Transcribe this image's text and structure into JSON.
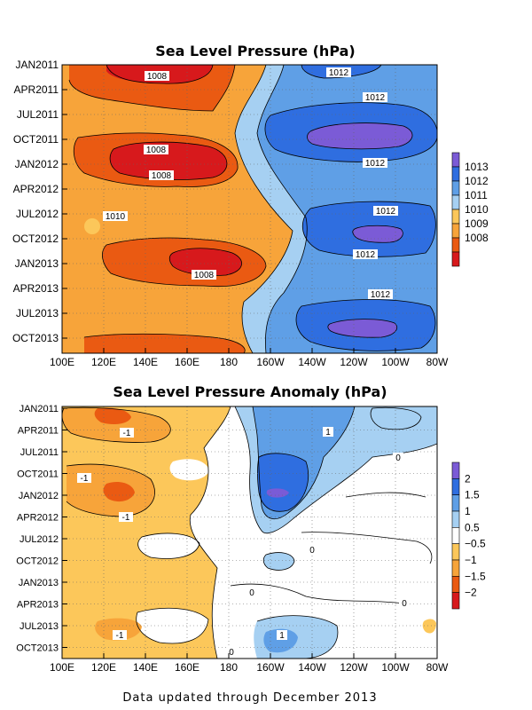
{
  "chart_data": [
    {
      "type": "heatmap",
      "title": "Sea Level Pressure (hPa)",
      "xlabel": "",
      "ylabel": "",
      "x_ticks": [
        "100E",
        "120E",
        "140E",
        "160E",
        "180",
        "160W",
        "140W",
        "120W",
        "100W",
        "80W"
      ],
      "y_ticks": [
        "JAN2011",
        "APR2011",
        "JUL2011",
        "OCT2011",
        "JAN2012",
        "APR2012",
        "JUL2012",
        "OCT2012",
        "JAN2013",
        "APR2013",
        "JUL2013",
        "OCT2013"
      ],
      "colorbar": {
        "levels": [
          "1008",
          "1009",
          "1010",
          "1011",
          "1012",
          "1013"
        ],
        "colors": [
          "#d7191c",
          "#ea5a12",
          "#f7a43a",
          "#fcc75a",
          "#a6d0f2",
          "#5f9fe6",
          "#2f6ee0",
          "#7b5bd6"
        ]
      },
      "contour_labels": [
        "1008",
        "1012",
        "1012",
        "1008",
        "1012",
        "1008",
        "1010",
        "1012",
        "1012",
        "1008",
        "1012"
      ],
      "grid": true
    },
    {
      "type": "heatmap",
      "title": "Sea Level Pressure Anomaly (hPa)",
      "xlabel": "",
      "ylabel": "",
      "x_ticks": [
        "100E",
        "120E",
        "140E",
        "160E",
        "180",
        "160W",
        "140W",
        "120W",
        "100W",
        "80W"
      ],
      "y_ticks": [
        "JAN2011",
        "APR2011",
        "JUL2011",
        "OCT2011",
        "JAN2012",
        "APR2012",
        "JUL2012",
        "OCT2012",
        "JAN2013",
        "APR2013",
        "JUL2013",
        "OCT2013"
      ],
      "colorbar": {
        "levels": [
          "2",
          "1.5",
          "1",
          "0.5",
          "−0.5",
          "−1",
          "−1.5",
          "−2"
        ],
        "colors": [
          "#7b5bd6",
          "#2f6ee0",
          "#5f9fe6",
          "#a6d0f2",
          "#ffffff",
          "#fcc75a",
          "#f7a43a",
          "#ea5a12",
          "#d7191c"
        ]
      },
      "contour_labels": [
        "-1",
        "1",
        "0",
        "-1",
        "-1",
        "0",
        "0",
        "0",
        "-1",
        "1",
        "0"
      ],
      "grid": true
    }
  ],
  "footer": "Data updated through December 2013"
}
